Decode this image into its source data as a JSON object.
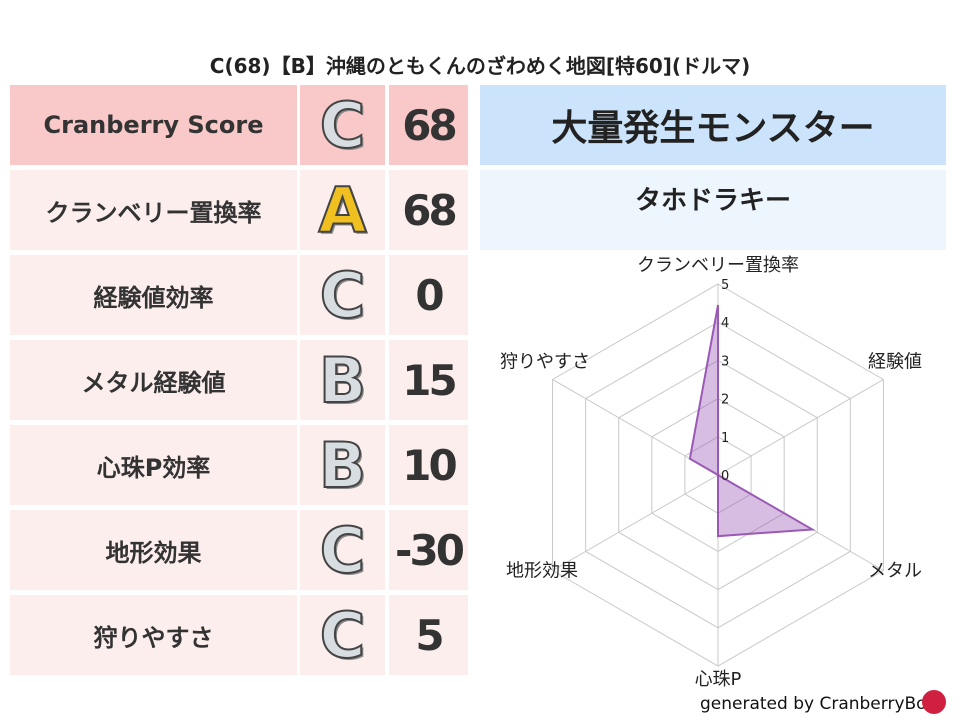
{
  "title": "C(68)【B】沖縄のともくんのざわめく地図[特60](ドルマ)",
  "rows": [
    {
      "label": "Cranberry Score",
      "grade": "C",
      "score": "68"
    },
    {
      "label": "クランベリー置換率",
      "grade": "A",
      "score": "68"
    },
    {
      "label": "経験値効率",
      "grade": "C",
      "score": "0"
    },
    {
      "label": "メタル経験値",
      "grade": "B",
      "score": "15"
    },
    {
      "label": "心珠P効率",
      "grade": "B",
      "score": "10"
    },
    {
      "label": "地形効果",
      "grade": "C",
      "score": "-30"
    },
    {
      "label": "狩りやすさ",
      "grade": "C",
      "score": "5"
    }
  ],
  "panel": {
    "header": "大量発生モンスター",
    "monster": "タホドラキー"
  },
  "chart_data": {
    "type": "radar",
    "axes": [
      "クランベリー置換率",
      "経験値",
      "メタル",
      "心珠P",
      "地形効果",
      "狩りやすさ"
    ],
    "values": [
      4.45,
      0,
      2.85,
      1.6,
      0,
      0.85
    ],
    "ticks": [
      "0",
      "1",
      "2",
      "3",
      "4",
      "5"
    ],
    "range": [
      0,
      5
    ],
    "color": "#9b59b6"
  },
  "footer": "generated by CranberryBot"
}
